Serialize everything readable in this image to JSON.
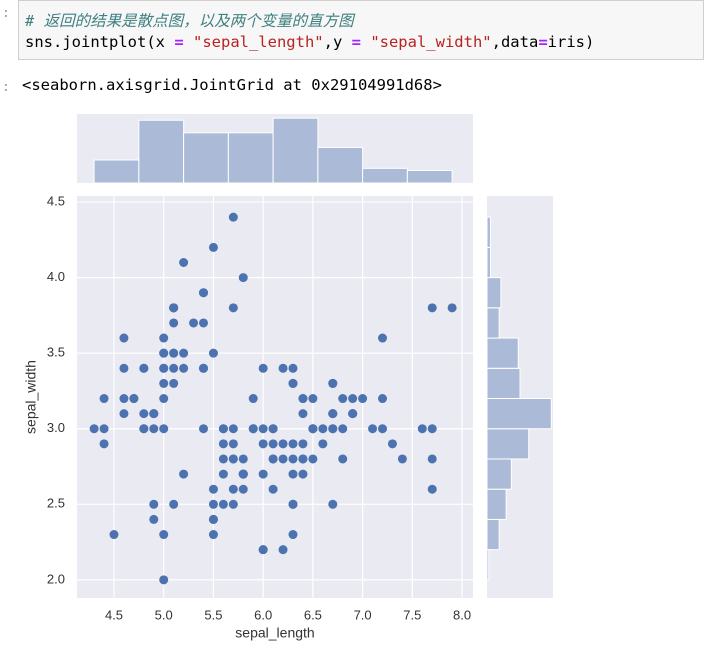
{
  "cell": {
    "comment": "# 返回的结果是散点图，以及两个变量的直方图",
    "code_tokens": [
      "sns.jointplot(x ",
      "=",
      " \"sepal_length\"",
      ",y ",
      "=",
      " \"sepal_width\"",
      ",data",
      "=",
      "iris)"
    ]
  },
  "output": "<seaborn.axisgrid.JointGrid at 0x29104991d68>",
  "chart_data": [
    {
      "type": "scatter",
      "xlabel": "sepal_length",
      "ylabel": "sepal_width",
      "color": "#4c72b0",
      "grid": true,
      "xlim": [
        4.128,
        8.11
      ],
      "ylim": [
        1.88,
        4.54
      ],
      "xticks": [
        4.5,
        {
          "value": 5,
          "label": "5.0"
        },
        5.5,
        {
          "value": 6,
          "label": "6.0"
        },
        6.5,
        {
          "value": 7,
          "label": "7.0"
        },
        7.5,
        {
          "value": 8,
          "label": "8.0"
        }
      ],
      "yticks": [
        {
          "value": 2,
          "label": "2.0"
        },
        2.5,
        {
          "value": 3,
          "label": "3.0"
        },
        3.5,
        {
          "value": 4,
          "label": "4.0"
        },
        4.5
      ],
      "x": [
        5.1,
        4.9,
        4.7,
        4.6,
        5.0,
        5.4,
        4.6,
        5.0,
        4.4,
        4.9,
        5.4,
        4.8,
        4.8,
        4.3,
        5.8,
        5.7,
        5.4,
        5.1,
        5.7,
        5.1,
        5.4,
        5.1,
        4.6,
        5.1,
        4.8,
        5.0,
        5.0,
        5.2,
        5.2,
        4.7,
        4.8,
        5.4,
        5.2,
        5.5,
        4.9,
        5.0,
        5.5,
        4.9,
        4.4,
        5.1,
        5.0,
        4.5,
        4.4,
        5.0,
        5.1,
        4.8,
        5.1,
        4.6,
        5.3,
        5.0,
        7.0,
        6.4,
        6.9,
        5.5,
        6.5,
        5.7,
        6.3,
        4.9,
        6.6,
        5.2,
        5.0,
        5.9,
        6.0,
        6.1,
        5.6,
        6.7,
        5.6,
        5.8,
        6.2,
        5.6,
        5.9,
        6.1,
        6.3,
        6.1,
        6.4,
        6.6,
        6.8,
        6.7,
        6.0,
        5.7,
        5.5,
        5.5,
        5.8,
        6.0,
        5.4,
        6.0,
        6.7,
        6.3,
        5.6,
        5.5,
        5.5,
        6.1,
        5.8,
        5.0,
        5.6,
        5.7,
        5.7,
        6.2,
        5.1,
        5.7,
        6.3,
        5.8,
        7.1,
        6.3,
        6.5,
        7.6,
        4.9,
        7.3,
        6.7,
        7.2,
        6.5,
        6.4,
        6.8,
        5.7,
        5.8,
        6.4,
        6.5,
        7.7,
        7.7,
        6.0,
        6.9,
        5.6,
        7.7,
        6.3,
        6.7,
        7.2,
        6.2,
        6.1,
        6.4,
        7.2,
        7.4,
        7.9,
        6.4,
        6.3,
        6.1,
        7.7,
        6.3,
        6.4,
        6.0,
        6.9,
        6.7,
        6.9,
        5.8,
        6.8,
        6.7,
        6.7,
        6.3,
        6.5,
        6.2,
        5.9
      ],
      "y": [
        3.5,
        3.0,
        3.2,
        3.1,
        3.6,
        3.9,
        3.4,
        3.4,
        2.9,
        3.1,
        3.7,
        3.4,
        3.0,
        3.0,
        4.0,
        4.4,
        3.9,
        3.5,
        3.8,
        3.8,
        3.4,
        3.7,
        3.6,
        3.3,
        3.4,
        3.0,
        3.4,
        3.5,
        3.4,
        3.2,
        3.1,
        3.4,
        4.1,
        4.2,
        3.1,
        3.2,
        3.5,
        3.1,
        3.0,
        3.4,
        3.5,
        2.3,
        3.2,
        3.5,
        3.8,
        3.0,
        3.8,
        3.2,
        3.7,
        3.3,
        3.2,
        3.2,
        3.1,
        2.3,
        2.8,
        2.8,
        3.3,
        2.4,
        2.9,
        2.7,
        2.0,
        3.0,
        2.2,
        2.9,
        2.9,
        3.1,
        3.0,
        2.7,
        2.2,
        2.5,
        3.2,
        2.8,
        2.5,
        2.8,
        2.9,
        3.0,
        2.8,
        3.0,
        2.9,
        2.6,
        2.4,
        2.4,
        2.7,
        2.7,
        3.0,
        3.4,
        3.1,
        2.3,
        3.0,
        2.5,
        2.6,
        3.0,
        2.6,
        2.3,
        2.7,
        3.0,
        2.9,
        2.9,
        2.5,
        2.8,
        3.3,
        2.7,
        3.0,
        2.9,
        3.0,
        3.0,
        2.5,
        2.9,
        2.5,
        3.6,
        3.2,
        2.7,
        3.0,
        2.5,
        2.8,
        3.2,
        3.0,
        3.8,
        2.6,
        2.2,
        3.2,
        2.8,
        2.8,
        2.7,
        3.3,
        3.2,
        2.8,
        3.0,
        2.8,
        3.0,
        2.8,
        3.8,
        2.8,
        2.8,
        2.6,
        3.0,
        3.4,
        3.1,
        3.0,
        3.1,
        3.1,
        3.1,
        2.7,
        3.2,
        3.3,
        3.0,
        2.5,
        3.0,
        3.4,
        3.0
      ]
    },
    {
      "type": "histogram",
      "color": "#4c72b0",
      "bins": [
        4.3,
        4.75,
        5.2,
        5.65,
        6.1,
        6.55,
        7.0,
        7.45,
        7.9
      ],
      "values": [
        11,
        30,
        24,
        24,
        31,
        17,
        7,
        6
      ],
      "xlim": [
        4.128,
        8.11
      ],
      "ylim": [
        0,
        33
      ]
    },
    {
      "type": "histogram",
      "orientation": "horizontal",
      "color": "#4c72b0",
      "bins": [
        2.0,
        2.2,
        2.4,
        2.6,
        2.8,
        3.0,
        3.2,
        3.4,
        3.6,
        3.8,
        4.0,
        4.2,
        4.4
      ],
      "values": [
        1,
        7,
        11,
        14,
        24,
        37,
        19,
        18,
        7,
        8,
        2,
        2
      ],
      "ylim": [
        1.88,
        4.54
      ],
      "xlim": [
        0,
        38
      ]
    }
  ]
}
